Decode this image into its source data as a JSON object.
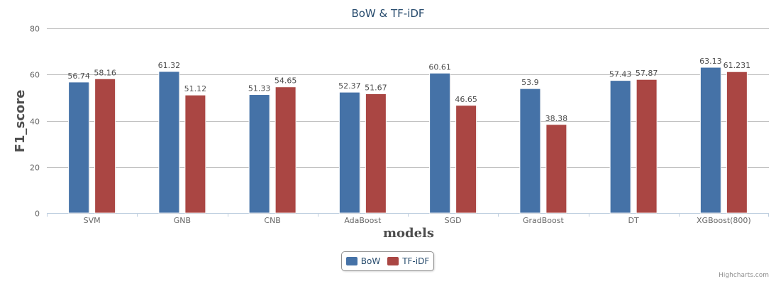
{
  "chart_data": {
    "type": "bar",
    "title": "BoW & TF-iDF",
    "xlabel": "models",
    "ylabel": "F1_score",
    "ylim": [
      0,
      80
    ],
    "yticks": [
      0,
      20,
      40,
      60,
      80
    ],
    "grid": true,
    "legend_position": "bottom-center",
    "categories": [
      "SVM",
      "GNB",
      "CNB",
      "AdaBoost",
      "SGD",
      "GradBoost",
      "DT",
      "XGBoost(800)"
    ],
    "series": [
      {
        "name": "BoW",
        "color": "#4572a7",
        "values": [
          56.74,
          61.32,
          51.33,
          52.37,
          60.61,
          53.9,
          57.43,
          63.13
        ],
        "labels": [
          "56.74",
          "61.32",
          "51.33",
          "52.37",
          "60.61",
          "53.9",
          "57.43",
          "63.13"
        ]
      },
      {
        "name": "TF-iDF",
        "color": "#aa4643",
        "values": [
          58.16,
          51.12,
          54.65,
          51.67,
          46.65,
          38.38,
          57.87,
          61.231
        ],
        "labels": [
          "58.16",
          "51.12",
          "54.65",
          "51.67",
          "46.65",
          "38.38",
          "57.87",
          "61.231"
        ]
      }
    ]
  },
  "credits": "Highcharts.com"
}
